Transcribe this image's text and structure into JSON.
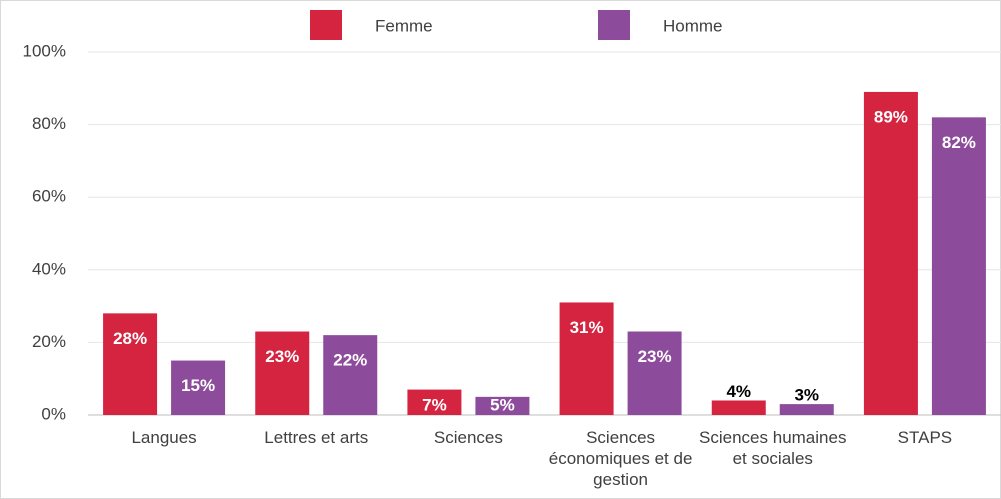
{
  "chart_data": {
    "type": "bar",
    "categories": [
      "Langues",
      "Lettres et arts",
      "Sciences",
      "Sciences économiques et de gestion",
      "Sciences humaines et sociales",
      "STAPS"
    ],
    "series": [
      {
        "name": "Femme",
        "color": "#d42440",
        "values": [
          28,
          23,
          7,
          31,
          4,
          89
        ],
        "value_labels": [
          "28%",
          "23%",
          "7%",
          "31%",
          "4%",
          "89%"
        ]
      },
      {
        "name": "Homme",
        "color": "#8c4b9b",
        "values": [
          15,
          22,
          5,
          23,
          3,
          82
        ],
        "value_labels": [
          "15%",
          "22%",
          "5%",
          "23%",
          "3%",
          "82%"
        ]
      }
    ],
    "ylim": [
      0,
      100
    ],
    "yticks": [
      {
        "value": 0,
        "label": "0%"
      },
      {
        "value": 20,
        "label": "20%"
      },
      {
        "value": 40,
        "label": "40%"
      },
      {
        "value": 60,
        "label": "60%"
      },
      {
        "value": 80,
        "label": "80%"
      },
      {
        "value": 100,
        "label": "100%"
      }
    ],
    "grid": true,
    "legend": "top"
  }
}
